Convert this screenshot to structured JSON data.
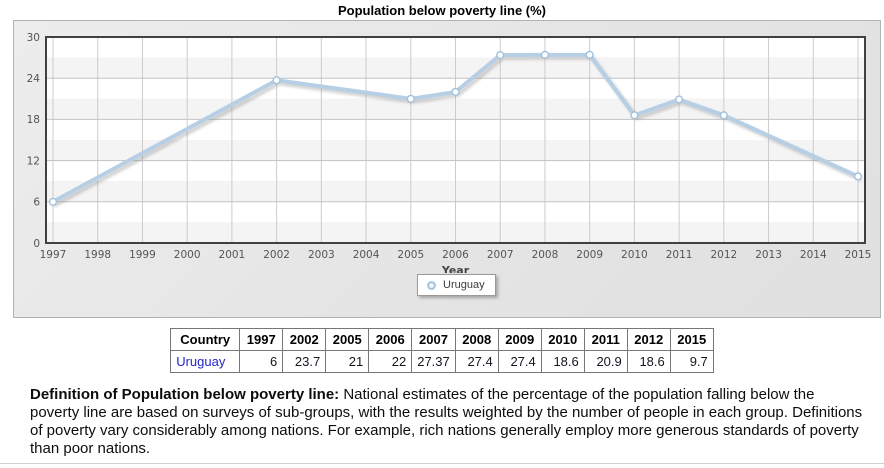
{
  "title": "Population below poverty line (%)",
  "chart_data": {
    "type": "line",
    "title": "Population below poverty line (%)",
    "xlabel": "Year",
    "ylabel": "",
    "x_ticks": [
      "1997",
      "1998",
      "1999",
      "2000",
      "2001",
      "2002",
      "2003",
      "2004",
      "2005",
      "2006",
      "2007",
      "2008",
      "2009",
      "2010",
      "2011",
      "2012",
      "2013",
      "2014",
      "2015"
    ],
    "y_ticks": [
      0,
      6,
      12,
      18,
      24,
      30
    ],
    "ylim": [
      0,
      30
    ],
    "grid": true,
    "legend_position": "bottom",
    "series": [
      {
        "name": "Uruguay",
        "color": "#b7cfe5",
        "marker_stroke": "#a3c1db",
        "marker_fill": "#fcfeff",
        "x": [
          1997,
          2002,
          2005,
          2006,
          2007,
          2008,
          2009,
          2010,
          2011,
          2012,
          2015
        ],
        "y": [
          6,
          23.7,
          21,
          22,
          27.37,
          27.4,
          27.4,
          18.6,
          20.9,
          18.6,
          9.7
        ]
      }
    ]
  },
  "table": {
    "headers": [
      "Country",
      "1997",
      "2002",
      "2005",
      "2006",
      "2007",
      "2008",
      "2009",
      "2010",
      "2011",
      "2012",
      "2015"
    ],
    "rows": [
      [
        "Uruguay",
        "6",
        "23.7",
        "21",
        "22",
        "27.37",
        "27.4",
        "27.4",
        "18.6",
        "20.9",
        "18.6",
        "9.7"
      ]
    ]
  },
  "definition": {
    "bold": "Definition of Population below poverty line:",
    "text": " National estimates of the percentage of the population falling below the poverty line are based on surveys of sub-groups, with the results weighted by the number of people in each group. Definitions of poverty vary considerably among nations. For example, rich nations generally employ more generous standards of poverty than poor nations."
  },
  "colors": {
    "series_line": "#b7cfe5",
    "marker_stroke": "#a3c1db",
    "plot_border": "#404040",
    "grid_line": "#cccccc",
    "band_alt": "#f4f4f4",
    "axis_text": "#555555",
    "link": "#2424cd"
  }
}
